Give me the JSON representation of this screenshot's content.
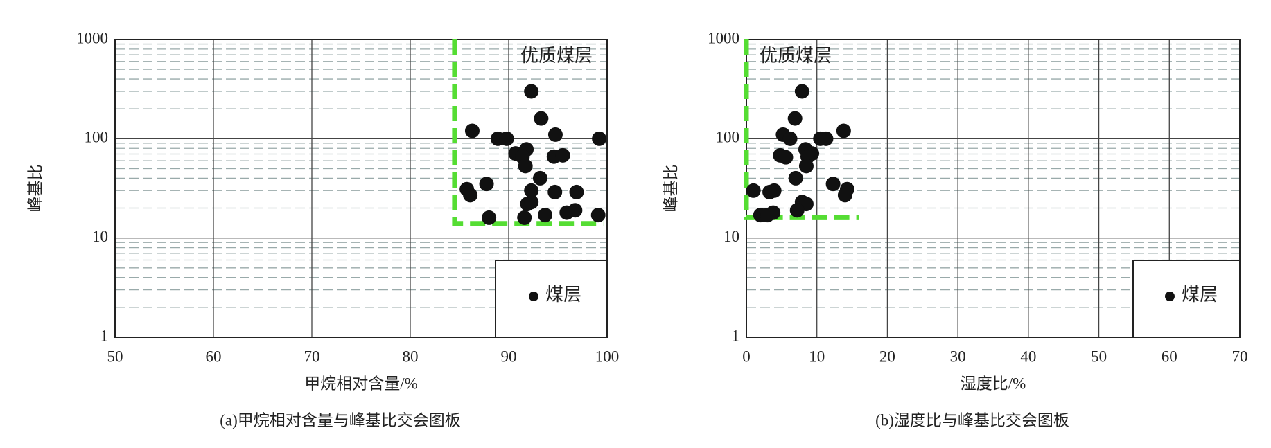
{
  "chart_data": [
    {
      "type": "scatter",
      "caption": "(a)甲烷相对含量与峰基比交会图板",
      "xlabel": "甲烷相对含量/%",
      "ylabel": "峰基比",
      "annotation": "优质煤层",
      "xlim": [
        50,
        100
      ],
      "xticks": [
        50,
        60,
        70,
        80,
        90,
        100
      ],
      "ylim": [
        1,
        1000
      ],
      "yticks": [
        1,
        10,
        100,
        1000
      ],
      "log_y": true,
      "grid": true,
      "minor_grid": true,
      "legend": "lower right",
      "highlight_region": {
        "x": [
          84.5,
          99.6
        ],
        "y": [
          14,
          1000
        ],
        "color": "#55dd33"
      },
      "series": [
        {
          "name": "煤层",
          "color": "#111111",
          "x": [
            92.3,
            93.3,
            86.3,
            88.9,
            89.8,
            94.75,
            99.2,
            90.7,
            91.8,
            91.4,
            94.6,
            95.5,
            91.7,
            93.2,
            87.75,
            85.75,
            86.1,
            92.3,
            94.7,
            96.9,
            91.9,
            92.3,
            93.7,
            88,
            91.6,
            95.9,
            96.75,
            99.1
          ],
          "values": [
            300,
            160,
            120,
            100,
            100,
            110,
            100,
            71,
            78,
            66,
            66,
            68,
            53,
            40,
            35,
            31,
            27,
            30,
            29,
            29,
            22,
            23,
            17,
            16,
            16,
            18,
            19,
            17
          ]
        }
      ]
    },
    {
      "type": "scatter",
      "caption": "(b)湿度比与峰基比交会图板",
      "xlabel": "湿度比/%",
      "ylabel": "峰基比",
      "annotation": "优质煤层",
      "xlim": [
        0,
        70
      ],
      "xticks": [
        0,
        10,
        20,
        30,
        40,
        50,
        60,
        70
      ],
      "ylim": [
        1,
        1000
      ],
      "yticks": [
        1,
        10,
        100,
        1000
      ],
      "log_y": true,
      "grid": true,
      "minor_grid": true,
      "legend": "lower right",
      "highlight_region": {
        "x": [
          0,
          16
        ],
        "y": [
          16,
          1000
        ],
        "color": "#55dd33"
      },
      "series": [
        {
          "name": "煤层",
          "color": "#111111",
          "x": [
            7.9,
            6.9,
            13.8,
            5.2,
            6.2,
            10.5,
            11.3,
            8.4,
            9.3,
            4.8,
            5.6,
            8.7,
            8.5,
            7.0,
            12.3,
            14.3,
            1.0,
            3.95,
            3.3,
            14.0,
            7.9,
            8.5,
            2.0,
            3.0,
            3.8,
            7.2
          ],
          "values": [
            300,
            160,
            120,
            110,
            100,
            100,
            100,
            78,
            71,
            68,
            65,
            66,
            53,
            40,
            35,
            31,
            30,
            30,
            29,
            27,
            23,
            22,
            17,
            17,
            18,
            19
          ]
        }
      ]
    }
  ]
}
